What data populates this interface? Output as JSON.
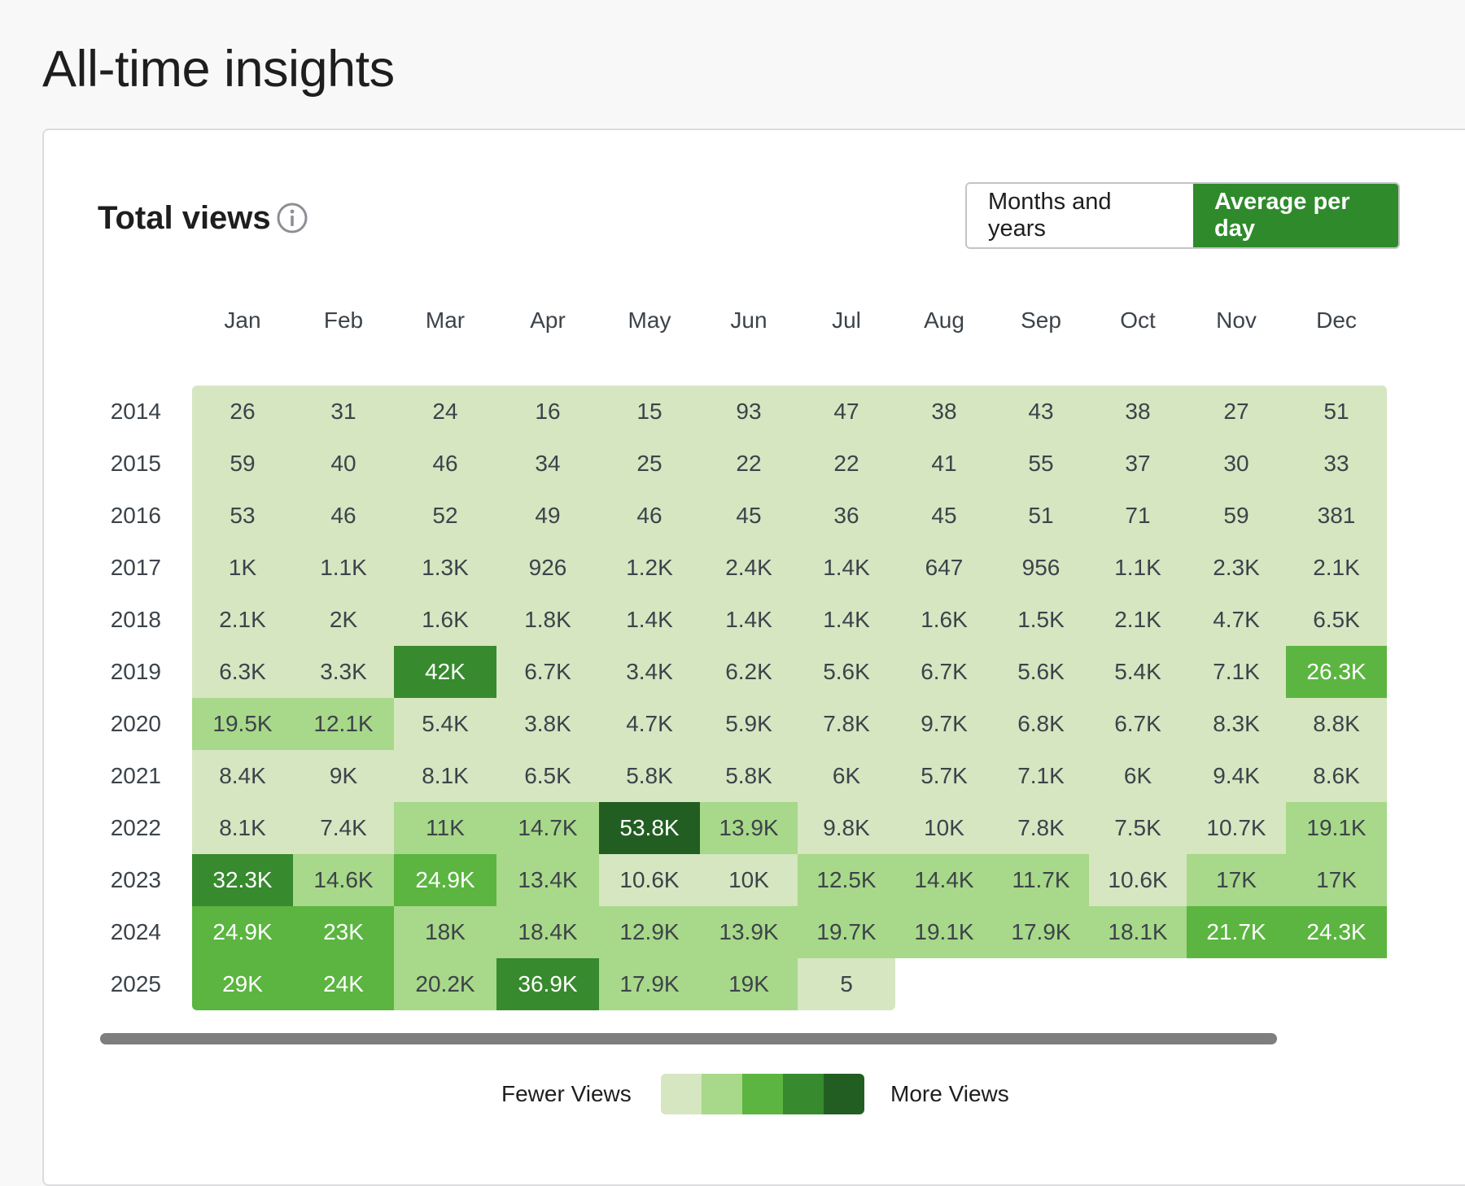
{
  "page": {
    "title": "All-time insights"
  },
  "card": {
    "title": "Total views",
    "info_icon": "info-icon",
    "toggle": {
      "months_label": "Months and years",
      "average_label": "Average per day",
      "active": "average"
    }
  },
  "legend": {
    "low_label": "Fewer Views",
    "high_label": "More Views",
    "colors": [
      "#d5e6c1",
      "#a8d889",
      "#5bb540",
      "#378a2d",
      "#225e22"
    ]
  },
  "chart_data": {
    "type": "heatmap",
    "columns": [
      "Jan",
      "Feb",
      "Mar",
      "Apr",
      "May",
      "Jun",
      "Jul",
      "Aug",
      "Sep",
      "Oct",
      "Nov",
      "Dec"
    ],
    "rows": [
      {
        "year": "2014",
        "values": [
          "26",
          "31",
          "24",
          "16",
          "15",
          "93",
          "47",
          "38",
          "43",
          "38",
          "27",
          "51"
        ],
        "levels": [
          0,
          0,
          0,
          0,
          0,
          0,
          0,
          0,
          0,
          0,
          0,
          0
        ]
      },
      {
        "year": "2015",
        "values": [
          "59",
          "40",
          "46",
          "34",
          "25",
          "22",
          "22",
          "41",
          "55",
          "37",
          "30",
          "33"
        ],
        "levels": [
          0,
          0,
          0,
          0,
          0,
          0,
          0,
          0,
          0,
          0,
          0,
          0
        ]
      },
      {
        "year": "2016",
        "values": [
          "53",
          "46",
          "52",
          "49",
          "46",
          "45",
          "36",
          "45",
          "51",
          "71",
          "59",
          "381"
        ],
        "levels": [
          0,
          0,
          0,
          0,
          0,
          0,
          0,
          0,
          0,
          0,
          0,
          0
        ]
      },
      {
        "year": "2017",
        "values": [
          "1K",
          "1.1K",
          "1.3K",
          "926",
          "1.2K",
          "2.4K",
          "1.4K",
          "647",
          "956",
          "1.1K",
          "2.3K",
          "2.1K"
        ],
        "levels": [
          0,
          0,
          0,
          0,
          0,
          0,
          0,
          0,
          0,
          0,
          0,
          0
        ]
      },
      {
        "year": "2018",
        "values": [
          "2.1K",
          "2K",
          "1.6K",
          "1.8K",
          "1.4K",
          "1.4K",
          "1.4K",
          "1.6K",
          "1.5K",
          "2.1K",
          "4.7K",
          "6.5K"
        ],
        "levels": [
          0,
          0,
          0,
          0,
          0,
          0,
          0,
          0,
          0,
          0,
          0,
          0
        ]
      },
      {
        "year": "2019",
        "values": [
          "6.3K",
          "3.3K",
          "42K",
          "6.7K",
          "3.4K",
          "6.2K",
          "5.6K",
          "6.7K",
          "5.6K",
          "5.4K",
          "7.1K",
          "26.3K"
        ],
        "levels": [
          0,
          0,
          3,
          0,
          0,
          0,
          0,
          0,
          0,
          0,
          0,
          2
        ]
      },
      {
        "year": "2020",
        "values": [
          "19.5K",
          "12.1K",
          "5.4K",
          "3.8K",
          "4.7K",
          "5.9K",
          "7.8K",
          "9.7K",
          "6.8K",
          "6.7K",
          "8.3K",
          "8.8K"
        ],
        "levels": [
          1,
          1,
          0,
          0,
          0,
          0,
          0,
          0,
          0,
          0,
          0,
          0
        ]
      },
      {
        "year": "2021",
        "values": [
          "8.4K",
          "9K",
          "8.1K",
          "6.5K",
          "5.8K",
          "5.8K",
          "6K",
          "5.7K",
          "7.1K",
          "6K",
          "9.4K",
          "8.6K"
        ],
        "levels": [
          0,
          0,
          0,
          0,
          0,
          0,
          0,
          0,
          0,
          0,
          0,
          0
        ]
      },
      {
        "year": "2022",
        "values": [
          "8.1K",
          "7.4K",
          "11K",
          "14.7K",
          "53.8K",
          "13.9K",
          "9.8K",
          "10K",
          "7.8K",
          "7.5K",
          "10.7K",
          "19.1K"
        ],
        "levels": [
          0,
          0,
          1,
          1,
          4,
          1,
          0,
          0,
          0,
          0,
          0,
          1
        ]
      },
      {
        "year": "2023",
        "values": [
          "32.3K",
          "14.6K",
          "24.9K",
          "13.4K",
          "10.6K",
          "10K",
          "12.5K",
          "14.4K",
          "11.7K",
          "10.6K",
          "17K",
          "17K"
        ],
        "levels": [
          3,
          1,
          2,
          1,
          0,
          0,
          1,
          1,
          1,
          0,
          1,
          1
        ]
      },
      {
        "year": "2024",
        "values": [
          "24.9K",
          "23K",
          "18K",
          "18.4K",
          "12.9K",
          "13.9K",
          "19.7K",
          "19.1K",
          "17.9K",
          "18.1K",
          "21.7K",
          "24.3K"
        ],
        "levels": [
          2,
          2,
          1,
          1,
          1,
          1,
          1,
          1,
          1,
          1,
          2,
          2
        ]
      },
      {
        "year": "2025",
        "values": [
          "29K",
          "24K",
          "20.2K",
          "36.9K",
          "17.9K",
          "19K",
          "5"
        ],
        "levels": [
          2,
          2,
          1,
          3,
          1,
          1,
          0
        ]
      }
    ]
  }
}
